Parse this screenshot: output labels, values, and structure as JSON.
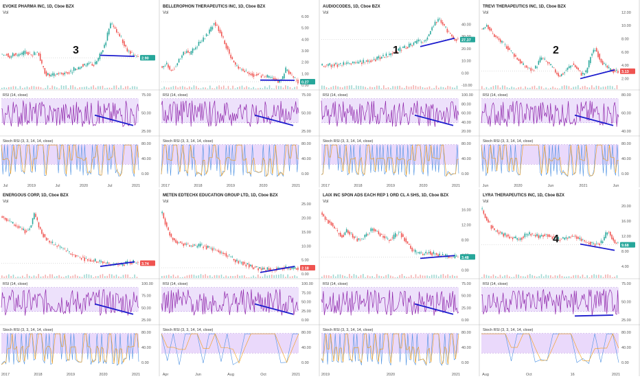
{
  "colors": {
    "rsi": "#8e24aa",
    "rsi_band": "#ede1fb",
    "stoch_band": "#ead9fb",
    "stoch_k": "#4a90e2",
    "stoch_d": "#f39c12",
    "up": "#26a69a",
    "down": "#ef5350",
    "marker": "#1a1acd",
    "axis_text": "#555555",
    "grid": "#e6e6e6",
    "panel_border": "#bcbcbc",
    "dashed": "#b78ede"
  },
  "common": {
    "vol": "Vol",
    "rsi_label": "RSI (14, close)",
    "stoch_label": "Stoch RSI (3, 3, 14, 14, close)",
    "stoch_ticks": [
      "80.00",
      "40.00",
      "0.00"
    ]
  },
  "chart_data": [
    {
      "type": "line",
      "title": "EVOKE PHARMA INC, 1D, Cboe BZX",
      "price_badge": "2.90",
      "badge_color": "#26a69a",
      "annotation": "3",
      "price_ticks": [],
      "rsi_ticks": [
        "75.00",
        "50.00",
        "25.00"
      ],
      "x_ticks": [
        "Jul",
        "2019",
        "Jul",
        "2020",
        "Jul",
        "2021"
      ],
      "price": [
        3.2,
        3.4,
        3.0,
        3.3,
        3.1,
        3.3,
        3.5,
        3.2,
        3.3,
        3.6,
        2.0,
        1.2,
        1.0,
        1.1,
        1.3,
        1.2,
        1.4,
        1.3,
        1.7,
        1.6,
        2.2,
        2.0,
        2.4,
        2.1,
        2.8,
        3.6,
        4.8,
        6.6,
        6.0,
        5.4,
        4.8,
        3.8,
        3.4,
        3.1,
        2.9
      ],
      "price_ylim": [
        0,
        8
      ]
    },
    {
      "type": "line",
      "title": "BELLEROPHON THERAPEUTICS INC, 1D, Cboe BZX",
      "price_badge": "0.27",
      "badge_color": "#26a69a",
      "annotation": "",
      "price_ticks": [
        "6.00",
        "5.00",
        "4.00",
        "3.00",
        "2.00",
        "1.00",
        "0.00"
      ],
      "rsi_ticks": [
        "75.00",
        "50.00",
        "25.00"
      ],
      "x_ticks": [
        "2017",
        "2018",
        "2019",
        "2020",
        "2021"
      ],
      "price": [
        1.6,
        1.9,
        1.3,
        1.5,
        2.1,
        2.6,
        3.0,
        2.7,
        3.2,
        3.6,
        3.9,
        4.3,
        4.8,
        5.5,
        5.0,
        4.2,
        3.4,
        2.6,
        1.9,
        1.5,
        1.3,
        1.1,
        1.0,
        0.9,
        1.0,
        0.8,
        0.7,
        0.7,
        0.5,
        0.3,
        0.5,
        1.4,
        1.0,
        0.6,
        0.3
      ],
      "price_ylim": [
        0,
        6.6
      ]
    },
    {
      "type": "line",
      "title": "AUDIOCODES, 1D, Cboe BZX",
      "price_badge": "27.37",
      "badge_color": "#26a69a",
      "annotation": "1",
      "price_ticks": [
        "40.00",
        "30.00",
        "20.00",
        "10.00",
        "0.00",
        "-10.00"
      ],
      "rsi_ticks": [
        "100.00",
        "80.00",
        "60.00",
        "40.00",
        "20.00"
      ],
      "x_ticks": [
        "2017",
        "2018",
        "2019",
        "2020",
        "2021"
      ],
      "price": [
        6.0,
        6.2,
        6.4,
        6.6,
        6.8,
        7.0,
        7.3,
        7.6,
        8.0,
        8.4,
        9.0,
        9.6,
        10.2,
        11.0,
        12.0,
        13.2,
        14.5,
        15.5,
        17.0,
        18.6,
        20.0,
        21.0,
        22.5,
        24.0,
        26.0,
        25.0,
        28.0,
        34.0,
        40.0,
        44.0,
        41.0,
        36.0,
        32.0,
        28.0,
        27.4
      ],
      "price_ylim": [
        -10,
        52
      ]
    },
    {
      "type": "line",
      "title": "TREVI THERAPEUTICS INC, 1D, Cboe BZX",
      "price_badge": "3.13",
      "badge_color": "#ef5350",
      "annotation": "2",
      "price_ticks": [
        "12.00",
        "10.00",
        "8.00",
        "6.00",
        "4.00",
        "2.00"
      ],
      "rsi_ticks": [
        "80.00",
        "60.00",
        "40.00"
      ],
      "x_ticks": [
        "Jun",
        "2020",
        "Jun",
        "2021",
        "Jun"
      ],
      "price": [
        9.5,
        10.2,
        9.0,
        8.2,
        7.6,
        7.0,
        6.4,
        5.6,
        4.8,
        4.0,
        3.6,
        3.2,
        3.8,
        5.2,
        4.6,
        4.0,
        3.2,
        2.4,
        2.8,
        3.6,
        4.2,
        3.4,
        2.6,
        3.0,
        5.5,
        6.5,
        5.0,
        4.0,
        3.4,
        3.1,
        3.1
      ],
      "price_ylim": [
        1,
        12.4
      ]
    },
    {
      "type": "line",
      "title": "ENERGOUS CORP, 1D, Cboe BZX",
      "price_badge": "3.74",
      "badge_color": "#ef5350",
      "annotation": "",
      "price_ticks": [],
      "rsi_ticks": [
        "100.00",
        "75.00",
        "50.00",
        "25.00"
      ],
      "x_ticks": [
        "2017",
        "2018",
        "2019",
        "2020",
        "2021"
      ],
      "price": [
        20.0,
        19.0,
        18.0,
        17.0,
        16.0,
        15.0,
        14.5,
        16.0,
        21.0,
        17.0,
        14.0,
        12.0,
        11.0,
        10.0,
        9.5,
        9.0,
        8.0,
        7.0,
        6.5,
        6.0,
        5.5,
        5.0,
        4.8,
        4.6,
        4.3,
        4.0,
        3.8,
        3.5,
        3.3,
        3.2,
        3.1,
        3.6,
        4.2,
        4.0,
        3.7
      ],
      "price_ylim": [
        0,
        26
      ]
    },
    {
      "type": "line",
      "title": "METEN EDTECHX EDUCATION GROUP LTD, 1D, Cboe BZX",
      "price_badge": "2.18",
      "badge_color": "#ef5350",
      "annotation": "",
      "price_ticks": [
        "25.00",
        "20.00",
        "15.00",
        "10.00",
        "5.00",
        "0.00"
      ],
      "rsi_ticks": [
        "100.00",
        "75.00",
        "50.00",
        "25.00",
        "0.00"
      ],
      "x_ticks": [
        "Apr",
        "Jun",
        "Aug",
        "Oct",
        "2021"
      ],
      "price": [
        22.0,
        16.0,
        13.0,
        11.5,
        11.0,
        10.5,
        10.0,
        9.8,
        10.2,
        9.6,
        9.0,
        8.4,
        7.6,
        7.0,
        6.0,
        5.0,
        4.2,
        3.6,
        3.0,
        2.4,
        2.0,
        1.8,
        1.6,
        1.7,
        1.9,
        2.0,
        2.1,
        2.0,
        2.2
      ],
      "price_ylim": [
        0,
        27
      ]
    },
    {
      "type": "line",
      "title": "LAIX INC SPON ADS EACH REP 1 ORD CL A SHS, 1D, Cboe BZX",
      "price_badge": "3.48",
      "badge_color": "#26a69a",
      "annotation": "",
      "price_ticks": [
        "16.00",
        "12.00",
        "8.00",
        "4.00",
        "0.00"
      ],
      "rsi_ticks": [
        "75.00",
        "50.00",
        "25.00",
        "0.00"
      ],
      "x_ticks": [
        "2019",
        "2020",
        "2021"
      ],
      "price": [
        15.0,
        13.0,
        12.0,
        10.0,
        9.0,
        10.5,
        9.0,
        8.0,
        8.5,
        9.5,
        11.0,
        10.0,
        9.0,
        8.0,
        8.5,
        10.0,
        9.0,
        7.0,
        5.0,
        4.6,
        4.2,
        4.8,
        4.4,
        4.0,
        3.8,
        3.6,
        3.4,
        3.5
      ],
      "price_ylim": [
        -1,
        19
      ]
    },
    {
      "type": "line",
      "title": "LYRA THERAPEUTICS INC, 1D, Cboe BZX",
      "price_badge": "9.68",
      "badge_color": "#26a69a",
      "annotation": "4",
      "price_ticks": [
        "20.00",
        "16.00",
        "12.00",
        "8.00",
        "4.00"
      ],
      "rsi_ticks": [
        "75.00",
        "50.00",
        "25.00"
      ],
      "x_ticks": [
        "Aug",
        "Oct",
        "16",
        "2021"
      ],
      "price": [
        19.0,
        16.0,
        14.0,
        13.0,
        12.5,
        12.0,
        11.6,
        11.0,
        12.0,
        12.8,
        12.2,
        11.8,
        12.4,
        12.0,
        11.5,
        11.0,
        11.6,
        12.2,
        11.8,
        11.0,
        10.5,
        10.0,
        9.8,
        10.4,
        13.5,
        11.0,
        9.7
      ],
      "price_ylim": [
        2,
        22
      ]
    }
  ]
}
